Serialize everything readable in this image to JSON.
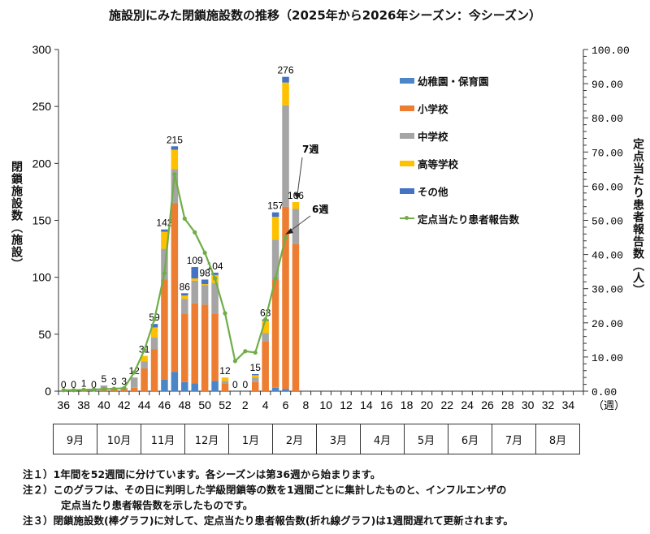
{
  "title": "施設別にみた閉鎖施設数の推移（2025年から2026年シーズン：今シーズン）",
  "chart_data": {
    "type": "bar",
    "stacked": true,
    "title": "施設別にみた閉鎖施設数の推移（2025年から2026年シーズン：今シーズン）",
    "xlabel": "（週）",
    "ylabel": "閉鎖施設数（施設）",
    "ylabel_right": "定点当たり患者報告数（人）",
    "ylim": [
      0,
      300
    ],
    "ylim_right": [
      0,
      100
    ],
    "yticks": [
      "0",
      "50",
      "100",
      "150",
      "200",
      "250",
      "300"
    ],
    "yticks_right": [
      "0.00",
      "10.00",
      "20.00",
      "30.00",
      "40.00",
      "50.00",
      "60.00",
      "70.00",
      "80.00",
      "90.00",
      "100.00"
    ],
    "xtick_labels": [
      "36",
      "38",
      "40",
      "42",
      "44",
      "46",
      "48",
      "50",
      "52",
      "2",
      "4",
      "6",
      "8",
      "10",
      "12",
      "14",
      "16",
      "18",
      "20",
      "22",
      "24",
      "26",
      "28",
      "30",
      "32",
      "34"
    ],
    "categories": [
      "36",
      "37",
      "38",
      "39",
      "40",
      "41",
      "42",
      "43",
      "44",
      "45",
      "46",
      "47",
      "48",
      "49",
      "50",
      "51",
      "52",
      "1",
      "2",
      "3",
      "4",
      "5",
      "6",
      "7"
    ],
    "totals": [
      0,
      0,
      1,
      0,
      5,
      3,
      3,
      12,
      31,
      59,
      142,
      215,
      86,
      109,
      98,
      104,
      12,
      0,
      0,
      15,
      63,
      157,
      276,
      166
    ],
    "series": [
      {
        "name": "幼稚園・保育園",
        "color": "#4a86c8",
        "values": [
          0,
          0,
          0,
          0,
          0,
          0,
          0,
          0,
          0,
          0,
          10,
          17,
          8,
          7,
          0,
          9,
          0,
          0,
          0,
          0,
          0,
          3,
          2,
          0
        ]
      },
      {
        "name": "小学校",
        "color": "#ed7d31",
        "values": [
          0,
          0,
          1,
          0,
          1,
          2,
          2,
          3,
          20,
          37,
          88,
          148,
          60,
          70,
          76,
          59,
          7,
          0,
          0,
          8,
          44,
          95,
          160,
          129
        ]
      },
      {
        "name": "中学校",
        "color": "#a5a5a5",
        "values": [
          0,
          0,
          0,
          0,
          4,
          1,
          1,
          9,
          6,
          10,
          27,
          30,
          13,
          20,
          17,
          27,
          2,
          0,
          0,
          4,
          7,
          35,
          89,
          31
        ]
      },
      {
        "name": "高等学校",
        "color": "#ffc000",
        "values": [
          0,
          0,
          0,
          0,
          0,
          0,
          0,
          0,
          5,
          9,
          15,
          17,
          3,
          2,
          1,
          7,
          3,
          0,
          0,
          2,
          11,
          20,
          20,
          6
        ]
      },
      {
        "name": "その他",
        "color": "#4472c4",
        "values": [
          0,
          0,
          0,
          0,
          0,
          0,
          0,
          0,
          0,
          3,
          2,
          3,
          2,
          10,
          4,
          2,
          0,
          0,
          0,
          1,
          1,
          4,
          5,
          0
        ]
      }
    ],
    "line_series": {
      "name": "定点当たり患者報告数",
      "color": "#70ad47",
      "axis": "right",
      "values": [
        0.3,
        0.3,
        0.4,
        0.5,
        0.6,
        0.7,
        0.9,
        5.5,
        12.0,
        21.0,
        34.5,
        63.5,
        50.5,
        46.5,
        40.5,
        33.0,
        22.8,
        8.8,
        11.7,
        11.3,
        21.0,
        33.0,
        45.0
      ]
    },
    "annotations": [
      {
        "text": "7週",
        "target": "bar week 7"
      },
      {
        "text": "6週",
        "target": "line point week 6"
      }
    ],
    "legend_position": "upper right inside"
  },
  "legend": [
    {
      "label": "幼稚園・保育園",
      "color": "#4a86c8",
      "kind": "bar"
    },
    {
      "label": "小学校",
      "color": "#ed7d31",
      "kind": "bar"
    },
    {
      "label": "中学校",
      "color": "#a5a5a5",
      "kind": "bar"
    },
    {
      "label": "高等学校",
      "color": "#ffc000",
      "kind": "bar"
    },
    {
      "label": "その他",
      "color": "#4472c4",
      "kind": "bar"
    },
    {
      "label": "定点当たり患者報告数",
      "color": "#70ad47",
      "kind": "line"
    }
  ],
  "axis": {
    "left_label": "閉鎖施設数（施設）",
    "right_label": "定点当たり患者報告数（人）",
    "x_unit": "（週）"
  },
  "months": [
    "9月",
    "10月",
    "11月",
    "12月",
    "1月",
    "2月",
    "3月",
    "4月",
    "5月",
    "6月",
    "7月",
    "8月"
  ],
  "notes": {
    "n1": "注１）1年間を52週間に分けています。各シーズンは第36週から始まります。",
    "n2a": "注２）このグラフは、その日に判明した学級閉鎖等の数を1週間ごとに集計したものと、インフルエンザの",
    "n2b": "定点当たり患者報告数を示したものです。",
    "n3": "注３）閉鎖施設数(棒グラフ)に対して、定点当たり患者報告数(折れ線グラフ)は1週間遅れて更新されます。"
  }
}
